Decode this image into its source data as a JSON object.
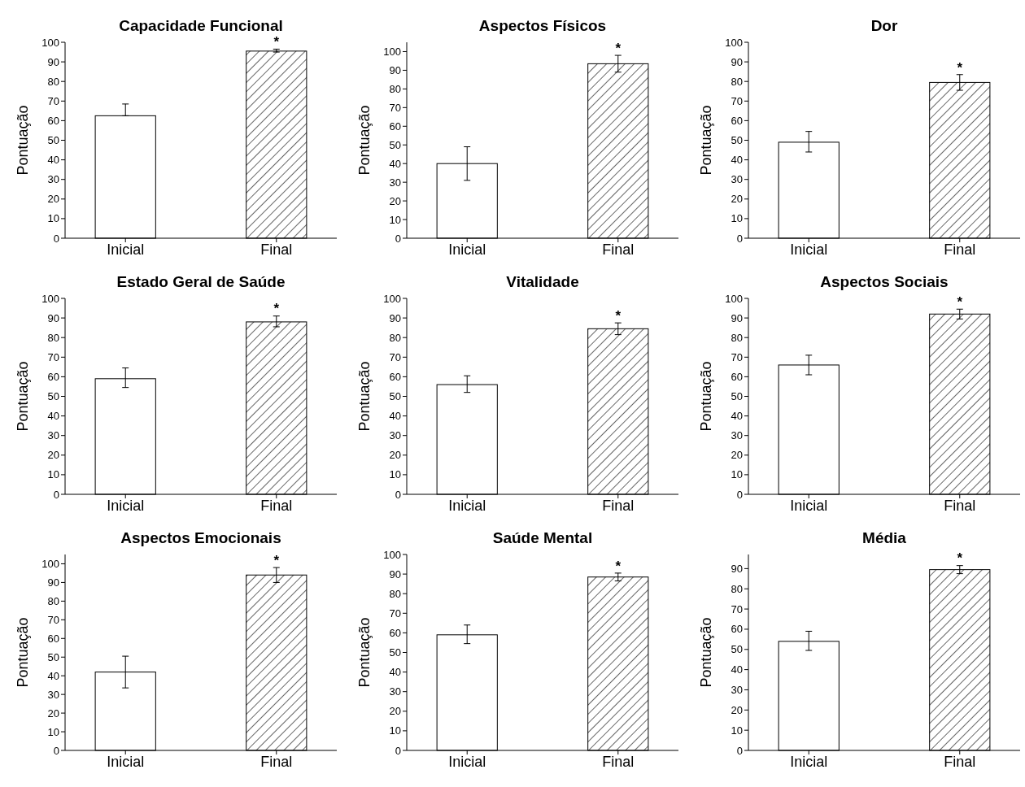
{
  "chart_data": [
    {
      "type": "bar",
      "title": "Capacidade Funcional",
      "ylabel": "Pontuação",
      "categories": [
        "Inicial",
        "Final"
      ],
      "values": [
        62.5,
        95.5
      ],
      "errors": [
        [
          62.5,
          68.5
        ],
        [
          95,
          96.5
        ]
      ],
      "colors": [
        "#ffffff",
        "#000000"
      ],
      "ylim": [
        0,
        100
      ],
      "yticks": [
        0,
        10,
        20,
        30,
        40,
        50,
        60,
        70,
        80,
        90,
        100
      ],
      "annotations": [
        {
          "text": "*",
          "x": "Final",
          "y": 96.5
        }
      ]
    },
    {
      "type": "bar",
      "title": "Aspectos Físicos",
      "ylabel": "Pontuação",
      "categories": [
        "Inicial",
        "Final"
      ],
      "values": [
        40,
        93.5
      ],
      "errors": [
        [
          31,
          49
        ],
        [
          89,
          98
        ]
      ],
      "colors": [
        "#ffffff",
        "#000000"
      ],
      "ylim": [
        0,
        105
      ],
      "yticks": [
        0,
        10,
        20,
        30,
        40,
        50,
        60,
        70,
        80,
        90,
        100
      ],
      "annotations": [
        {
          "text": "*",
          "x": "Final",
          "y": 98
        }
      ]
    },
    {
      "type": "bar",
      "title": "Dor",
      "ylabel": "Pontuação",
      "categories": [
        "Inicial",
        "Final"
      ],
      "values": [
        49,
        79.5
      ],
      "errors": [
        [
          44,
          54.5
        ],
        [
          75.5,
          83.5
        ]
      ],
      "colors": [
        "#ffffff",
        "#000000"
      ],
      "ylim": [
        0,
        100
      ],
      "yticks": [
        0,
        10,
        20,
        30,
        40,
        50,
        60,
        70,
        80,
        90,
        100
      ],
      "annotations": [
        {
          "text": "*",
          "x": "Final",
          "y": 83.5
        }
      ]
    },
    {
      "type": "bar",
      "title": "Estado Geral de Saúde",
      "ylabel": "Pontuação",
      "categories": [
        "Inicial",
        "Final"
      ],
      "values": [
        59,
        88
      ],
      "errors": [
        [
          54.5,
          64.5
        ],
        [
          85.5,
          91
        ]
      ],
      "colors": [
        "#ffffff",
        "#000000"
      ],
      "ylim": [
        0,
        100
      ],
      "yticks": [
        0,
        10,
        20,
        30,
        40,
        50,
        60,
        70,
        80,
        90,
        100
      ],
      "annotations": [
        {
          "text": "*",
          "x": "Final",
          "y": 91
        }
      ]
    },
    {
      "type": "bar",
      "title": "Vitalidade",
      "ylabel": "Pontuação",
      "categories": [
        "Inicial",
        "Final"
      ],
      "values": [
        56,
        84.5
      ],
      "errors": [
        [
          52,
          60.5
        ],
        [
          81.5,
          87.5
        ]
      ],
      "colors": [
        "#ffffff",
        "#000000"
      ],
      "ylim": [
        0,
        100
      ],
      "yticks": [
        0,
        10,
        20,
        30,
        40,
        50,
        60,
        70,
        80,
        90,
        100
      ],
      "annotations": [
        {
          "text": "*",
          "x": "Final",
          "y": 87.5
        }
      ]
    },
    {
      "type": "bar",
      "title": "Aspectos Sociais",
      "ylabel": "Pontuação",
      "categories": [
        "Inicial",
        "Final"
      ],
      "values": [
        66,
        92
      ],
      "errors": [
        [
          61,
          71
        ],
        [
          89.5,
          94.5
        ]
      ],
      "colors": [
        "#ffffff",
        "#000000"
      ],
      "ylim": [
        0,
        100
      ],
      "yticks": [
        0,
        10,
        20,
        30,
        40,
        50,
        60,
        70,
        80,
        90,
        100
      ],
      "annotations": [
        {
          "text": "*",
          "x": "Final",
          "y": 94.5
        }
      ]
    },
    {
      "type": "bar",
      "title": "Aspectos Emocionais",
      "ylabel": "Pontuação",
      "categories": [
        "Inicial",
        "Final"
      ],
      "values": [
        42,
        94
      ],
      "errors": [
        [
          33.5,
          50.5
        ],
        [
          90,
          98
        ]
      ],
      "colors": [
        "#ffffff",
        "#000000"
      ],
      "ylim": [
        0,
        105
      ],
      "yticks": [
        0,
        10,
        20,
        30,
        40,
        50,
        60,
        70,
        80,
        90,
        100
      ],
      "annotations": [
        {
          "text": "*",
          "x": "Final",
          "y": 98
        }
      ]
    },
    {
      "type": "bar",
      "title": "Saúde Mental",
      "ylabel": "Pontuação",
      "categories": [
        "Inicial",
        "Final"
      ],
      "values": [
        59,
        88.5
      ],
      "errors": [
        [
          54.5,
          64
        ],
        [
          86.5,
          90.5
        ]
      ],
      "colors": [
        "#ffffff",
        "#000000"
      ],
      "ylim": [
        0,
        100
      ],
      "yticks": [
        0,
        10,
        20,
        30,
        40,
        50,
        60,
        70,
        80,
        90,
        100
      ],
      "annotations": [
        {
          "text": "*",
          "x": "Final",
          "y": 90.5
        }
      ]
    },
    {
      "type": "bar",
      "title": "Média",
      "ylabel": "Pontuação",
      "categories": [
        "Inicial",
        "Final"
      ],
      "values": [
        54,
        89.5
      ],
      "errors": [
        [
          49.5,
          59
        ],
        [
          87.5,
          91.5
        ]
      ],
      "colors": [
        "#ffffff",
        "#000000"
      ],
      "ylim": [
        0,
        97
      ],
      "yticks": [
        0,
        10,
        20,
        30,
        40,
        50,
        60,
        70,
        80,
        90
      ],
      "annotations": [
        {
          "text": "*",
          "x": "Final",
          "y": 91.5
        }
      ]
    }
  ]
}
